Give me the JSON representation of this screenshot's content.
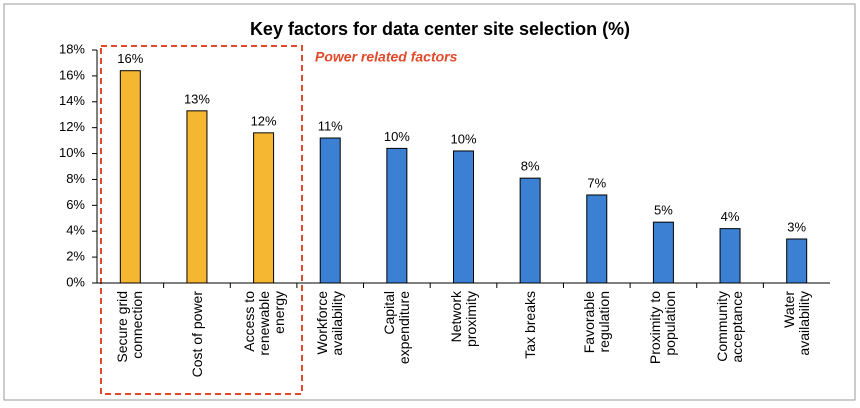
{
  "chart_data": {
    "type": "bar",
    "title": "Key factors for data center site selection (%)",
    "annotation": "Power related factors",
    "categories": [
      "Secure grid\nconnection",
      "Cost of power",
      "Access to\nrenewable\nenergy",
      "Workforce\navailability",
      "Capital\nexpenditure",
      "Network\nproximity",
      "Tax breaks",
      "Favorable\nregulation",
      "Proximity to\npopulation",
      "Community\nacceptance",
      "Water\navailability"
    ],
    "values": [
      16.4,
      13.3,
      11.6,
      11.2,
      10.4,
      10.2,
      8.1,
      6.8,
      4.7,
      4.2,
      3.4
    ],
    "value_labels": [
      "16%",
      "13%",
      "12%",
      "11%",
      "10%",
      "10%",
      "8%",
      "7%",
      "5%",
      "4%",
      "3%"
    ],
    "colors": [
      "#f5b731",
      "#f5b731",
      "#f5b731",
      "#3b80d2",
      "#3b80d2",
      "#3b80d2",
      "#3b80d2",
      "#3b80d2",
      "#3b80d2",
      "#3b80d2",
      "#3b80d2"
    ],
    "ylim": [
      0,
      18
    ],
    "yticks": [
      {
        "value": 0,
        "label": "0%"
      },
      {
        "value": 2,
        "label": "2%"
      },
      {
        "value": 4,
        "label": "4%"
      },
      {
        "value": 6,
        "label": "6%"
      },
      {
        "value": 8,
        "label": "8%"
      },
      {
        "value": 10,
        "label": "10%"
      },
      {
        "value": 12,
        "label": "12%"
      },
      {
        "value": 14,
        "label": "14%"
      },
      {
        "value": 16,
        "label": "16%"
      },
      {
        "value": 18,
        "label": "18%"
      }
    ],
    "grid": false
  }
}
